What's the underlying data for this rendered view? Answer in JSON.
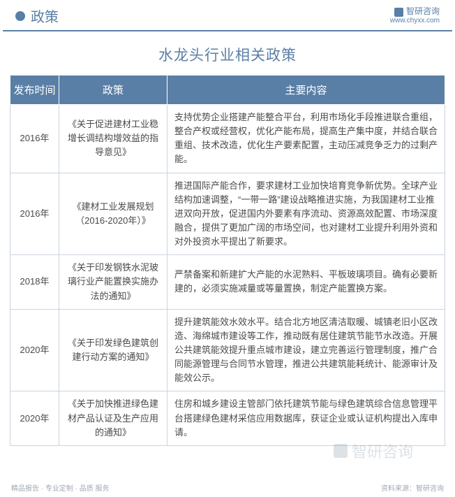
{
  "header": {
    "label": "政策",
    "brand_name": "智研咨询",
    "brand_url": "www.chyxx.com"
  },
  "title": "水龙头行业相关政策",
  "columns": [
    "发布时间",
    "政策",
    "主要内容"
  ],
  "rows": [
    {
      "year": "2016年",
      "policy": "《关于促进建材工业稳增长调结构增效益的指导意见》",
      "content": "支持优势企业搭建产能整合平台，利用市场化手段推进联合重组，整合产权或经营权，优化产能布局，提高生产集中度，并结合联合重组、技术改造，优化生产要素配置，主动压减竞争乏力的过剩产能。"
    },
    {
      "year": "2016年",
      "policy": "《建材工业发展规划（2016-2020年）》",
      "content": "推进国际产能合作，要求建材工业加快培育竞争新优势。全球产业结构加速调整，“一带一路”建设战略推进实施，为我国建材工业推进双向开放，促进国内外要素有序流动、资源高效配置、市场深度融合，提供了更加广阔的市场空间，也对建材工业提升利用外资和对外投资水平提出了新要求。"
    },
    {
      "year": "2018年",
      "policy": "《关于印发钢铁水泥玻璃行业产能置换实施办法的通知》",
      "content": "严禁备案和新建扩大产能的水泥熟料、平板玻璃项目。确有必要新建的，必须实施减量或等量置换，制定产能置换方案。"
    },
    {
      "year": "2020年",
      "policy": "《关于印发绿色建筑创建行动方案的通知》",
      "content": "提升建筑能效水效水平。结合北方地区清洁取暖、城镇老旧小区改造、海绵城市建设等工作，推动既有居住建筑节能节水改造。开展公共建筑能效提升重点城市建设，建立完善运行管理制度，推广合同能源管理与合同节水管理，推进公共建筑能耗统计、能源审计及能效公示。"
    },
    {
      "year": "2020年",
      "policy": "《关于加快推进绿色建材产品认证及生产应用的通知》",
      "content": "住房和城乡建设主管部门依托建筑节能与绿色建筑综合信息管理平台搭建绿色建材采信应用数据库，获证企业或认证机构提出入库申请。"
    }
  ],
  "footer": {
    "left": "精品报告 · 专业定制 · 品质 服务",
    "right": "资料来源：智研咨询"
  },
  "watermark": "智研咨询",
  "colors": {
    "accent": "#5a7fa6",
    "border": "#c9d4df",
    "text": "#4a4a4a",
    "muted": "#a0a8b4"
  }
}
